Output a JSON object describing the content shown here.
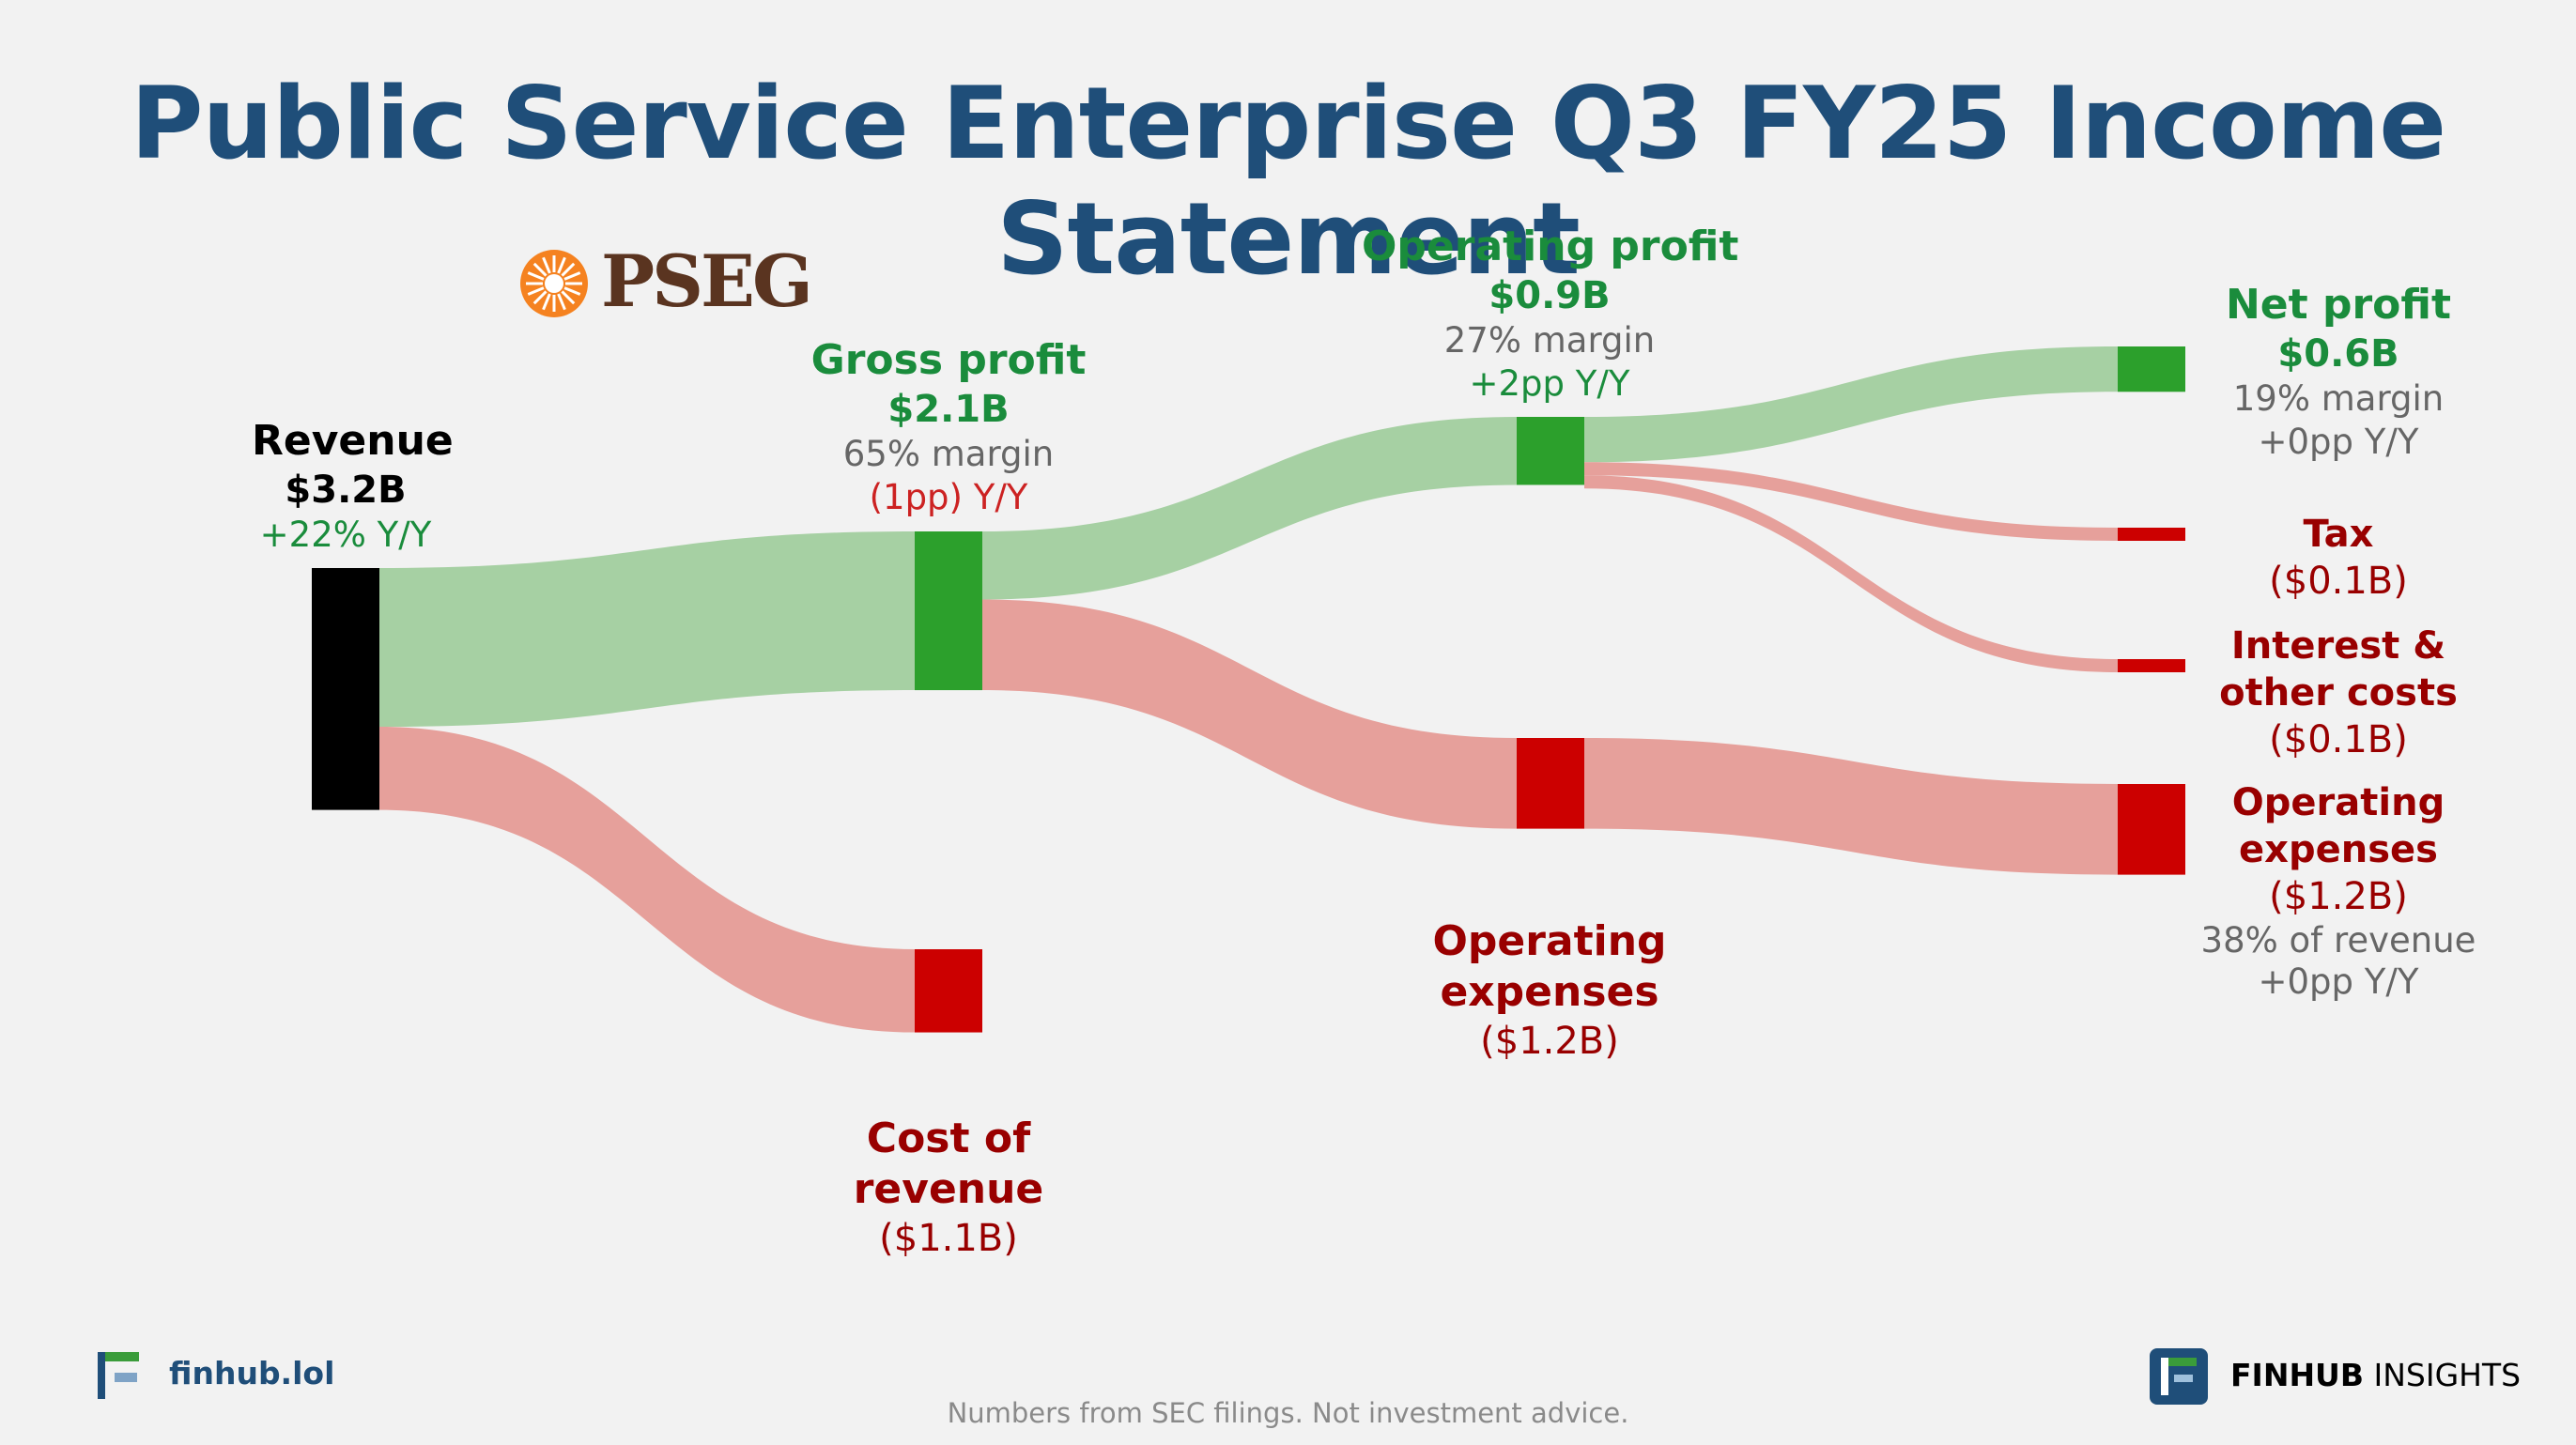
{
  "title": "Public Service Enterprise Q3 FY25 Income Statement",
  "logo_text": "PSEG",
  "colors": {
    "title": "#1f4e79",
    "profit_label": "#1a8c3c",
    "loss_label": "#990000",
    "gray": "#666666",
    "profit_node": "#2ca02c",
    "loss_node": "#cc0000",
    "revenue_node": "#000000",
    "profit_flow": "#a6d0a3",
    "loss_flow": "#e6a09b",
    "logo_orange": "#f58220",
    "logo_brown": "#5a3420"
  },
  "chart_data": {
    "type": "sankey",
    "unit": "$B",
    "nodes": [
      {
        "id": "revenue",
        "name": "Revenue",
        "value": 3.2,
        "value_label": "$3.2B",
        "yoy": "+22% Y/Y"
      },
      {
        "id": "gross_profit",
        "name": "Gross profit",
        "value": 2.1,
        "value_label": "$2.1B",
        "margin": "65% margin",
        "yoy": "(1pp) Y/Y"
      },
      {
        "id": "cost_of_revenue",
        "name_lines": [
          "Cost of",
          "revenue"
        ],
        "value": 1.1,
        "value_label": "($1.1B)"
      },
      {
        "id": "operating_profit",
        "name": "Operating profit",
        "value": 0.9,
        "value_label": "$0.9B",
        "margin": "27% margin",
        "yoy": "+2pp Y/Y"
      },
      {
        "id": "operating_expenses_mid",
        "name_lines": [
          "Operating",
          "expenses"
        ],
        "value": 1.2,
        "value_label": "($1.2B)"
      },
      {
        "id": "net_profit",
        "name": "Net profit",
        "value": 0.6,
        "value_label": "$0.6B",
        "margin": "19% margin",
        "yoy": "+0pp Y/Y"
      },
      {
        "id": "tax",
        "name": "Tax",
        "value": 0.1,
        "value_label": "($0.1B)"
      },
      {
        "id": "interest",
        "name_lines": [
          "Interest &",
          "other costs"
        ],
        "value": 0.1,
        "value_label": "($0.1B)"
      },
      {
        "id": "operating_expenses",
        "name_lines": [
          "Operating",
          "expenses"
        ],
        "value": 1.2,
        "value_label": "($1.2B)",
        "margin": "38% of revenue",
        "yoy": "+0pp Y/Y"
      }
    ],
    "links": [
      {
        "source": "revenue",
        "target": "gross_profit",
        "value": 2.1,
        "kind": "profit"
      },
      {
        "source": "revenue",
        "target": "cost_of_revenue",
        "value": 1.1,
        "kind": "loss"
      },
      {
        "source": "gross_profit",
        "target": "operating_profit",
        "value": 0.9,
        "kind": "profit"
      },
      {
        "source": "gross_profit",
        "target": "operating_expenses_mid",
        "value": 1.2,
        "kind": "loss"
      },
      {
        "source": "operating_profit",
        "target": "net_profit",
        "value": 0.6,
        "kind": "profit"
      },
      {
        "source": "operating_profit",
        "target": "tax",
        "value": 0.1,
        "kind": "loss"
      },
      {
        "source": "operating_profit",
        "target": "interest",
        "value": 0.1,
        "kind": "loss"
      },
      {
        "source": "operating_expenses_mid",
        "target": "operating_expenses",
        "value": 1.2,
        "kind": "loss"
      }
    ]
  },
  "footer": {
    "left_brand": "finhub.lol",
    "right_brand_bold": "FINHUB",
    "right_brand_light": " INSIGHTS",
    "disclaimer": "Numbers from SEC filings. Not investment advice."
  }
}
